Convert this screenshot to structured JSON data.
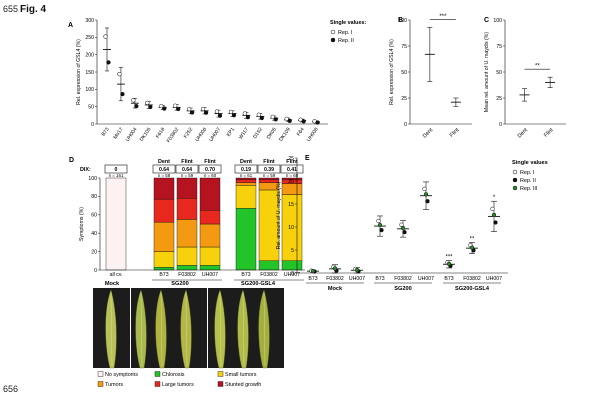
{
  "page": {
    "line_numbers": [
      "655",
      "656"
    ],
    "figure_title": "Fig. 4"
  },
  "legend_ac": {
    "title": "Single values:",
    "items": [
      "Rep. I",
      "Rep. II"
    ]
  },
  "legend_e": {
    "title": "Single values",
    "items": [
      "Rep. I",
      "Rep. II",
      "Rep. III"
    ]
  },
  "colors": {
    "chlorosis": "#22c42a",
    "small_tumors": "#f6d10c",
    "tumors": "#f39a12",
    "large_tumors": "#e8281f",
    "stunted_growth": "#b4131f",
    "no_symptoms": "#fdf2f2",
    "rep1": "#ffffff",
    "rep2": "#111111",
    "rep3": "#2a8a2a"
  },
  "chart_data": [
    {
      "panel": "A",
      "type": "scatter",
      "ylabel": "Rel. expression of GSL4 (%)",
      "ylim": [
        0,
        300
      ],
      "yticks": [
        0,
        50,
        100,
        150,
        200,
        250,
        300
      ],
      "categories": [
        "B73",
        "Mo17",
        "UH004",
        "DK105",
        "F618",
        "F03802",
        "F252",
        "UH006",
        "UH007",
        "EP1",
        "W117",
        "D152",
        "DK05",
        "DK109",
        "F64",
        "UH008"
      ],
      "mean": [
        215,
        115,
        60,
        55,
        48,
        48,
        38,
        38,
        30,
        30,
        25,
        22,
        17,
        12,
        10,
        6
      ],
      "sd": [
        62,
        48,
        14,
        10,
        6,
        8,
        8,
        9,
        10,
        8,
        9,
        8,
        6,
        5,
        4,
        3
      ]
    },
    {
      "panel": "B",
      "type": "scatter",
      "ylabel": "Rel. expression of GSL4 (%)",
      "ylim": [
        0,
        100
      ],
      "yticks": [
        0,
        25,
        50,
        75,
        100
      ],
      "categories": [
        "Dent",
        "Flint"
      ],
      "mean": [
        67,
        21
      ],
      "sd": [
        26,
        4
      ],
      "significance": "***"
    },
    {
      "panel": "C",
      "type": "scatter",
      "ylabel": "Mean rel. amount of U. maydis (%)",
      "ylim": [
        0,
        100
      ],
      "yticks": [
        0,
        25,
        50,
        75,
        100
      ],
      "categories": [
        "Dent",
        "Flint"
      ],
      "mean": [
        28,
        40
      ],
      "sd": [
        6,
        5
      ],
      "significance": "**"
    },
    {
      "panel": "D",
      "type": "bar",
      "ylabel": "Symptoms (%)",
      "ylim": [
        0,
        100
      ],
      "yticks": [
        0,
        20,
        40,
        60,
        80,
        100
      ],
      "dix_label": "DIX:",
      "group_headers": [
        "Dent",
        "Flint",
        "Flint",
        "Dent",
        "Flint",
        "Flint"
      ],
      "categories": [
        "all cv.",
        "B73",
        "F03802",
        "UH007",
        "B73",
        "F03802",
        "UH007"
      ],
      "dix": [
        "0",
        "0.64",
        "0.64",
        "0.70",
        "0.19",
        "0.39",
        "0.41"
      ],
      "n": [
        "n = 161",
        "n = 58",
        "n = 59",
        "n = 60",
        "n = 61",
        "n = 59",
        "n = 60"
      ],
      "treatment_labels": [
        "Mock",
        "SG200",
        "SG200-GSL4"
      ],
      "series": [
        {
          "name": "No symptoms",
          "values": [
            100,
            0,
            0,
            0,
            0,
            0,
            0
          ]
        },
        {
          "name": "Chlorosis",
          "values": [
            0,
            3,
            5,
            5,
            67,
            10,
            10
          ]
        },
        {
          "name": "Small tumors",
          "values": [
            0,
            17,
            20,
            20,
            25,
            77,
            72
          ]
        },
        {
          "name": "Tumors",
          "values": [
            0,
            32,
            30,
            25,
            3,
            8,
            12
          ]
        },
        {
          "name": "Large tumors",
          "values": [
            0,
            25,
            23,
            15,
            3,
            3,
            4
          ]
        },
        {
          "name": "Stunted growth",
          "values": [
            0,
            23,
            22,
            35,
            2,
            2,
            2
          ]
        }
      ]
    },
    {
      "panel": "E",
      "type": "scatter",
      "ylabel": "Rel. amount of U. maydis (%)",
      "ylim": [
        0,
        25
      ],
      "yticks": [
        0,
        5,
        10,
        15,
        20,
        25
      ],
      "categories": [
        "B73",
        "F03802",
        "UH007",
        "B73",
        "F03802",
        "UH007",
        "B73",
        "F03802",
        "UH007"
      ],
      "group_labels": [
        "Mock",
        "SG200",
        "SG200-GSL4"
      ],
      "mean": [
        0.4,
        0.9,
        0.6,
        10.2,
        9.6,
        16.8,
        1.9,
        5.4,
        12.3
      ],
      "sd": [
        0.2,
        0.9,
        0.6,
        2.2,
        1.8,
        3.0,
        0.8,
        1.2,
        3.3
      ],
      "significance": [
        "",
        "",
        "",
        "",
        "",
        "",
        "***",
        "**",
        "*"
      ]
    }
  ],
  "photos": {
    "labels": [
      "Mock",
      "SG200",
      "SG200-GSL4"
    ],
    "leaves": [
      {
        "color": "#b9c25a"
      },
      {
        "color": "#a9b94e"
      },
      {
        "color": "#aeb43f"
      },
      {
        "color": "#b3b747"
      },
      {
        "color": "#b6c04c"
      },
      {
        "color": "#b0ba48"
      },
      {
        "color": "#a3af3f"
      }
    ]
  },
  "symptom_legend": [
    {
      "label": "No symptoms",
      "key": "no_symptoms"
    },
    {
      "label": "Chlorosis",
      "key": "chlorosis"
    },
    {
      "label": "Small tumors",
      "key": "small_tumors"
    },
    {
      "label": "Tumors",
      "key": "tumors"
    },
    {
      "label": "Large tumors",
      "key": "large_tumors"
    },
    {
      "label": "Stunted growth",
      "key": "stunted_growth"
    }
  ]
}
